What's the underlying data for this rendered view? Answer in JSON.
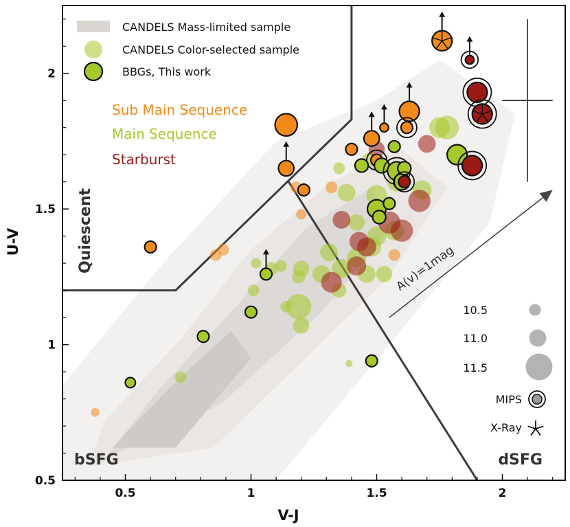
{
  "chart_data": {
    "type": "scatter",
    "xlabel": "V-J",
    "ylabel": "U-V",
    "xlim": [
      0.25,
      2.25
    ],
    "ylim": [
      0.5,
      2.25
    ],
    "xticks": [
      0.5,
      1,
      1.5,
      2
    ],
    "xtick_labels": [
      "0.5",
      "1",
      "1.5",
      "2"
    ],
    "yticks": [
      0.5,
      1,
      1.5,
      2
    ],
    "ytick_labels": [
      "0.5",
      "1",
      "1.5",
      "2"
    ],
    "legend": {
      "position": "top-left",
      "entries": [
        "CANDELS Mass-limited sample",
        "CANDELS Color-selected sample",
        "BBGs, This work"
      ]
    },
    "groups": [
      {
        "label": "Sub Main Sequence",
        "color": "#f28a1a"
      },
      {
        "label": "Main Sequence",
        "color": "#a6c82a"
      },
      {
        "label": "Starburst",
        "color": "#9c1a14"
      }
    ],
    "regions": [
      "Quiescent",
      "bSFG",
      "dSFG"
    ],
    "annotation": "A(v)=1mag",
    "size_key": [
      {
        "label": "10.5",
        "mass": 10.5
      },
      {
        "label": "11.0",
        "mass": 11.0
      },
      {
        "label": "11.5",
        "mass": 11.5
      }
    ],
    "marker_key": [
      {
        "label": "MIPS",
        "symbol": "ring"
      },
      {
        "label": "X-Ray",
        "symbol": "star"
      }
    ],
    "quiescent_boundary": [
      [
        0.25,
        1.2
      ],
      [
        0.7,
        1.2
      ],
      [
        1.4,
        1.83
      ],
      [
        1.4,
        2.25
      ]
    ],
    "dsfg_boundary": [
      [
        1.15,
        1.6
      ],
      [
        1.9,
        0.5
      ]
    ],
    "av_vector": {
      "from": [
        1.55,
        1.1
      ],
      "to": [
        2.2,
        1.57
      ]
    },
    "error_bar": {
      "x": 2.1,
      "y": 1.9,
      "xerr": 0.1,
      "yerr": 0.3
    },
    "density_contours": [
      {
        "level": 1,
        "color": "#f3f1ef",
        "polygon": [
          [
            0.25,
            0.5
          ],
          [
            1.1,
            0.5
          ],
          [
            1.55,
            1.0
          ],
          [
            1.95,
            1.45
          ],
          [
            2.05,
            1.85
          ],
          [
            1.75,
            2.05
          ],
          [
            1.5,
            1.9
          ],
          [
            1.1,
            1.75
          ],
          [
            0.65,
            1.3
          ],
          [
            0.25,
            0.85
          ]
        ]
      },
      {
        "level": 2,
        "color": "#e9e6e3",
        "polygon": [
          [
            0.35,
            0.55
          ],
          [
            0.85,
            0.62
          ],
          [
            1.25,
            0.98
          ],
          [
            1.55,
            1.25
          ],
          [
            1.78,
            1.58
          ],
          [
            1.6,
            1.72
          ],
          [
            1.32,
            1.6
          ],
          [
            1.0,
            1.35
          ],
          [
            0.72,
            1.02
          ],
          [
            0.42,
            0.72
          ]
        ]
      },
      {
        "level": 3,
        "color": "#dcd9d6",
        "polygon": [
          [
            0.42,
            0.58
          ],
          [
            0.88,
            0.78
          ],
          [
            1.28,
            1.12
          ],
          [
            1.55,
            1.42
          ],
          [
            1.48,
            1.58
          ],
          [
            1.22,
            1.43
          ],
          [
            0.92,
            1.12
          ],
          [
            0.62,
            0.82
          ]
        ]
      },
      {
        "level": 4,
        "color": "#cdcac7",
        "polygon": [
          [
            0.45,
            0.62
          ],
          [
            0.7,
            0.62
          ],
          [
            1.0,
            0.95
          ],
          [
            0.92,
            1.05
          ],
          [
            0.72,
            0.88
          ],
          [
            0.55,
            0.72
          ]
        ]
      }
    ],
    "series": [
      {
        "name": "CANDELS Color-selected sample",
        "points": [
          {
            "x": 0.38,
            "y": 0.75,
            "mass": 10.3,
            "group": "Sub Main Sequence"
          },
          {
            "x": 0.86,
            "y": 1.33,
            "mass": 10.5,
            "group": "Sub Main Sequence"
          },
          {
            "x": 0.89,
            "y": 1.35,
            "mass": 10.5,
            "group": "Sub Main Sequence"
          },
          {
            "x": 1.18,
            "y": 1.58,
            "mass": 10.5,
            "group": "Sub Main Sequence"
          },
          {
            "x": 1.2,
            "y": 1.48,
            "mass": 10.4,
            "group": "Sub Main Sequence"
          },
          {
            "x": 1.32,
            "y": 1.58,
            "mass": 10.5,
            "group": "Sub Main Sequence"
          },
          {
            "x": 1.57,
            "y": 1.33,
            "mass": 10.5,
            "group": "Sub Main Sequence"
          },
          {
            "x": 0.72,
            "y": 0.88,
            "mass": 10.5,
            "group": "Main Sequence"
          },
          {
            "x": 1.39,
            "y": 0.93,
            "mass": 10.2,
            "group": "Main Sequence"
          },
          {
            "x": 1.12,
            "y": 1.29,
            "mass": 10.5,
            "group": "Main Sequence"
          },
          {
            "x": 1.2,
            "y": 1.28,
            "mass": 10.8,
            "group": "Main Sequence"
          },
          {
            "x": 1.02,
            "y": 1.3,
            "mass": 10.4,
            "group": "Main Sequence"
          },
          {
            "x": 1.08,
            "y": 1.28,
            "mass": 10.6,
            "group": "Main Sequence"
          },
          {
            "x": 1.01,
            "y": 1.2,
            "mass": 10.5,
            "group": "Main Sequence"
          },
          {
            "x": 1.14,
            "y": 1.14,
            "mass": 10.5,
            "group": "Main Sequence"
          },
          {
            "x": 1.19,
            "y": 1.25,
            "mass": 10.6,
            "group": "Main Sequence"
          },
          {
            "x": 1.19,
            "y": 1.14,
            "mass": 11.4,
            "group": "Main Sequence"
          },
          {
            "x": 1.2,
            "y": 1.07,
            "mass": 10.8,
            "group": "Main Sequence"
          },
          {
            "x": 1.28,
            "y": 1.26,
            "mass": 10.9,
            "group": "Main Sequence"
          },
          {
            "x": 1.31,
            "y": 1.34,
            "mass": 10.9,
            "group": "Main Sequence"
          },
          {
            "x": 1.36,
            "y": 1.28,
            "mass": 11.0,
            "group": "Main Sequence"
          },
          {
            "x": 1.42,
            "y": 1.32,
            "mass": 11.0,
            "group": "Main Sequence"
          },
          {
            "x": 1.35,
            "y": 1.2,
            "mass": 10.7,
            "group": "Main Sequence"
          },
          {
            "x": 1.42,
            "y": 1.45,
            "mass": 10.8,
            "group": "Main Sequence"
          },
          {
            "x": 1.48,
            "y": 1.36,
            "mass": 11.0,
            "group": "Main Sequence"
          },
          {
            "x": 1.46,
            "y": 1.26,
            "mass": 10.9,
            "group": "Main Sequence"
          },
          {
            "x": 1.53,
            "y": 1.26,
            "mass": 10.8,
            "group": "Main Sequence"
          },
          {
            "x": 1.5,
            "y": 1.4,
            "mass": 11.0,
            "group": "Main Sequence"
          },
          {
            "x": 1.38,
            "y": 1.56,
            "mass": 10.9,
            "group": "Main Sequence"
          },
          {
            "x": 1.5,
            "y": 1.55,
            "mass": 11.1,
            "group": "Main Sequence"
          },
          {
            "x": 1.57,
            "y": 1.42,
            "mass": 11.0,
            "group": "Main Sequence"
          },
          {
            "x": 1.35,
            "y": 1.65,
            "mass": 10.5,
            "group": "Main Sequence"
          },
          {
            "x": 1.47,
            "y": 1.68,
            "mass": 10.7,
            "group": "Main Sequence"
          },
          {
            "x": 1.58,
            "y": 1.6,
            "mass": 11.0,
            "group": "Main Sequence"
          },
          {
            "x": 1.68,
            "y": 1.57,
            "mass": 11.0,
            "group": "Main Sequence"
          },
          {
            "x": 1.75,
            "y": 1.8,
            "mass": 11.1,
            "group": "Main Sequence"
          },
          {
            "x": 1.78,
            "y": 1.8,
            "mass": 11.3,
            "group": "Main Sequence"
          },
          {
            "x": 1.36,
            "y": 1.46,
            "mass": 10.9,
            "group": "Starburst"
          },
          {
            "x": 1.43,
            "y": 1.38,
            "mass": 11.0,
            "group": "Starburst"
          },
          {
            "x": 1.42,
            "y": 1.29,
            "mass": 11.0,
            "group": "Starburst"
          },
          {
            "x": 1.32,
            "y": 1.23,
            "mass": 11.1,
            "group": "Starburst"
          },
          {
            "x": 1.46,
            "y": 1.36,
            "mass": 11.0,
            "group": "Starburst"
          },
          {
            "x": 1.55,
            "y": 1.45,
            "mass": 11.2,
            "group": "Starburst"
          },
          {
            "x": 1.6,
            "y": 1.42,
            "mass": 11.2,
            "group": "Starburst"
          },
          {
            "x": 1.7,
            "y": 1.74,
            "mass": 10.9,
            "group": "Starburst"
          },
          {
            "x": 1.67,
            "y": 1.53,
            "mass": 11.2,
            "group": "Starburst"
          },
          {
            "x": 1.5,
            "y": 1.72,
            "mass": 10.8,
            "group": "Starburst"
          }
        ]
      },
      {
        "name": "BBGs, This work",
        "points": [
          {
            "x": 0.6,
            "y": 1.36,
            "mass": 10.5,
            "group": "Sub Main Sequence"
          },
          {
            "x": 1.14,
            "y": 1.65,
            "mass": 10.75,
            "group": "Sub Main Sequence",
            "lower_limit": true
          },
          {
            "x": 1.14,
            "y": 1.81,
            "mass": 11.2,
            "group": "Sub Main Sequence"
          },
          {
            "x": 1.21,
            "y": 1.57,
            "mass": 10.5,
            "group": "Sub Main Sequence"
          },
          {
            "x": 1.4,
            "y": 1.72,
            "mass": 10.5,
            "group": "Sub Main Sequence"
          },
          {
            "x": 1.48,
            "y": 1.76,
            "mass": 10.75,
            "group": "Sub Main Sequence",
            "lower_limit": true
          },
          {
            "x": 1.53,
            "y": 1.8,
            "mass": 10.3,
            "group": "Sub Main Sequence",
            "lower_limit": true
          },
          {
            "x": 1.5,
            "y": 1.68,
            "mass": 10.5,
            "group": "Sub Main Sequence",
            "mips": true
          },
          {
            "x": 1.63,
            "y": 1.86,
            "mass": 11.05,
            "group": "Sub Main Sequence",
            "lower_limit": true
          },
          {
            "x": 1.62,
            "y": 1.8,
            "mass": 10.5,
            "group": "Sub Main Sequence",
            "mips": true
          },
          {
            "x": 1.76,
            "y": 2.12,
            "mass": 11.05,
            "group": "Sub Main Sequence",
            "xray": true,
            "lower_limit": true
          },
          {
            "x": 0.52,
            "y": 0.86,
            "mass": 10.4,
            "group": "Main Sequence"
          },
          {
            "x": 0.81,
            "y": 1.03,
            "mass": 10.5,
            "group": "Main Sequence"
          },
          {
            "x": 1.0,
            "y": 1.12,
            "mass": 10.5,
            "group": "Main Sequence"
          },
          {
            "x": 1.06,
            "y": 1.26,
            "mass": 10.5,
            "group": "Main Sequence",
            "lower_limit": true
          },
          {
            "x": 1.48,
            "y": 0.94,
            "mass": 10.5,
            "group": "Main Sequence"
          },
          {
            "x": 1.5,
            "y": 1.5,
            "mass": 10.95,
            "group": "Main Sequence"
          },
          {
            "x": 1.51,
            "y": 1.47,
            "mass": 10.6,
            "group": "Main Sequence"
          },
          {
            "x": 1.55,
            "y": 1.52,
            "mass": 10.5,
            "group": "Main Sequence"
          },
          {
            "x": 1.44,
            "y": 1.66,
            "mass": 10.6,
            "group": "Main Sequence"
          },
          {
            "x": 1.52,
            "y": 1.66,
            "mass": 10.7,
            "group": "Main Sequence"
          },
          {
            "x": 1.57,
            "y": 1.73,
            "mass": 10.5,
            "group": "Main Sequence"
          },
          {
            "x": 1.58,
            "y": 1.64,
            "mass": 10.95,
            "group": "Main Sequence",
            "mips": true
          },
          {
            "x": 1.6,
            "y": 1.6,
            "mass": 10.8,
            "group": "Main Sequence"
          },
          {
            "x": 1.61,
            "y": 1.65,
            "mass": 10.6,
            "group": "Main Sequence"
          },
          {
            "x": 1.82,
            "y": 1.7,
            "mass": 11.05,
            "group": "Main Sequence"
          },
          {
            "x": 1.61,
            "y": 1.6,
            "mass": 10.5,
            "group": "Starburst",
            "mips": true
          },
          {
            "x": 1.87,
            "y": 2.05,
            "mass": 10.3,
            "group": "Starburst",
            "mips": true,
            "lower_limit": true
          },
          {
            "x": 1.9,
            "y": 1.93,
            "mass": 11.05,
            "group": "Starburst",
            "mips": true
          },
          {
            "x": 1.92,
            "y": 1.85,
            "mass": 11.05,
            "group": "Starburst",
            "mips": true,
            "xray": true
          },
          {
            "x": 1.88,
            "y": 1.66,
            "mass": 11.05,
            "group": "Starburst",
            "mips": true
          }
        ]
      }
    ]
  }
}
